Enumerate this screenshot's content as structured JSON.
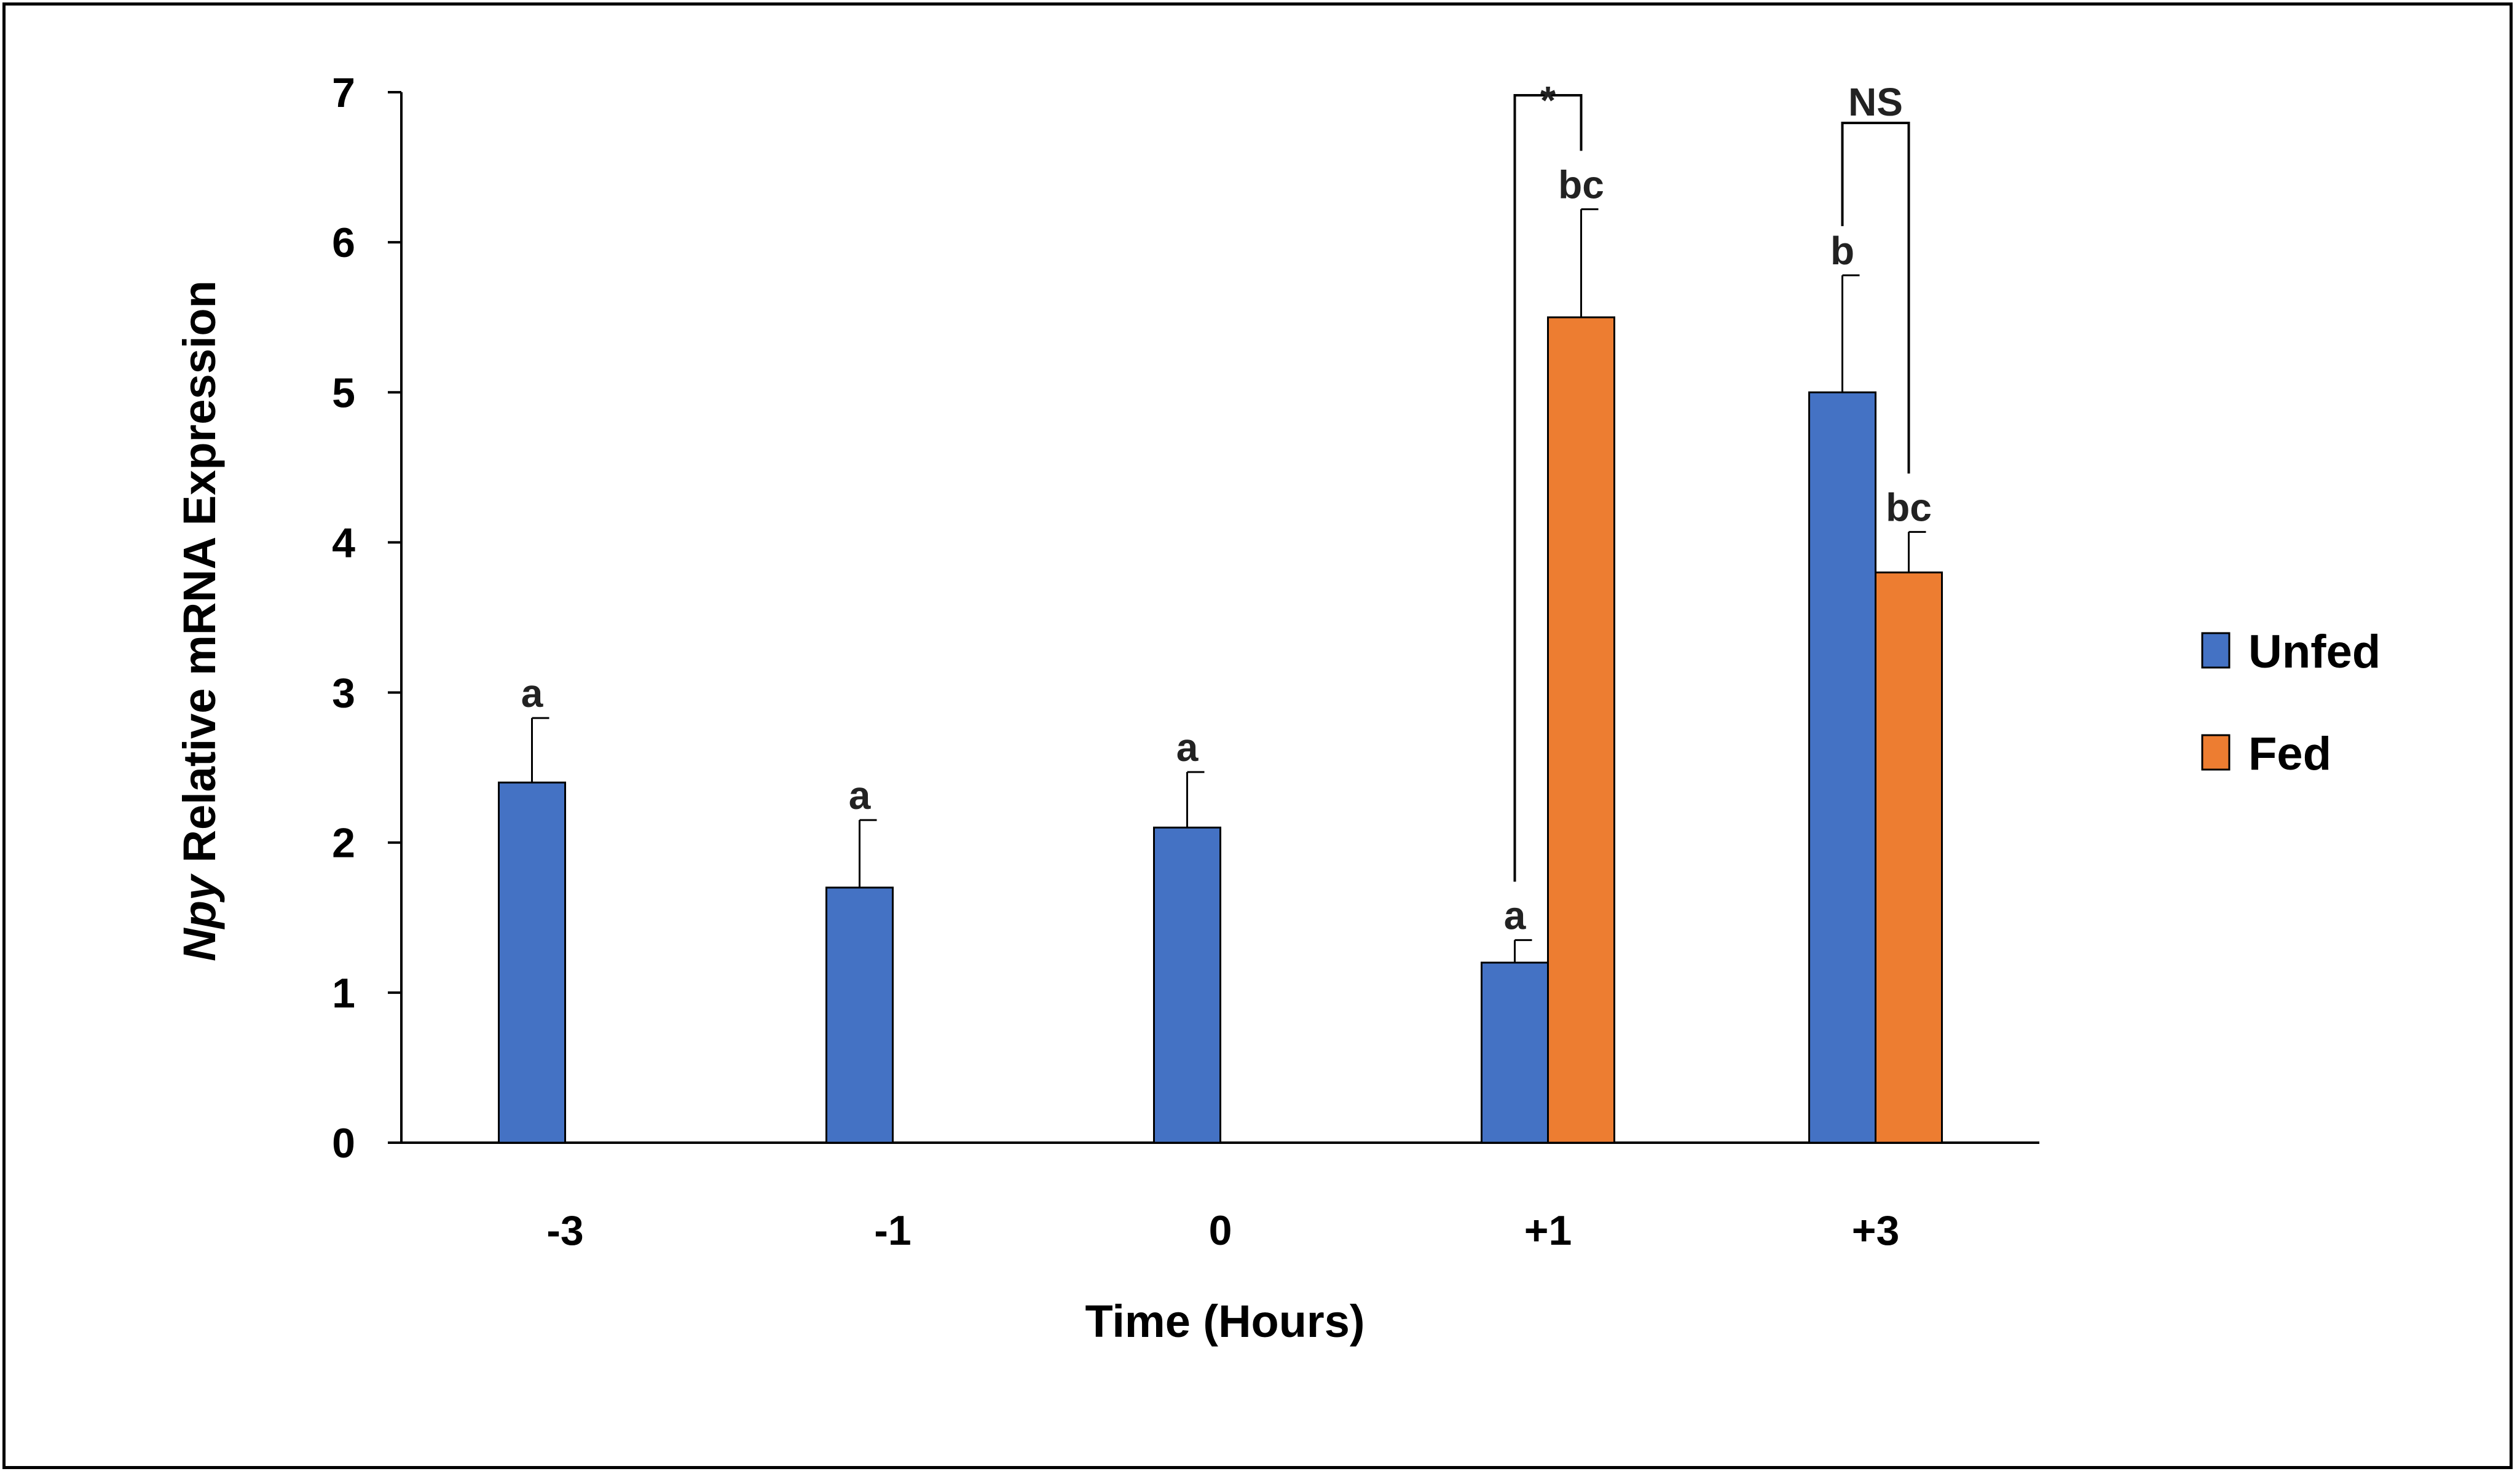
{
  "chart_data": {
    "type": "bar",
    "title": "",
    "ylabel_italic": "Npy",
    "ylabel_rest": " Relative mRNA Expression",
    "xlabel": "Time (Hours)",
    "ylim": [
      0,
      7
    ],
    "yticks": [
      "0",
      "1",
      "2",
      "3",
      "4",
      "5",
      "6",
      "7"
    ],
    "categories": [
      "-3",
      "-1",
      "0",
      "+1",
      "+3"
    ],
    "series": [
      {
        "name": "Unfed",
        "color": "#4472C4",
        "values": [
          2.4,
          1.7,
          2.1,
          1.2,
          5.0
        ],
        "errors": [
          0.43,
          0.45,
          0.37,
          0.15,
          0.78
        ],
        "labels": [
          "a",
          "a",
          "a",
          "a",
          "b"
        ]
      },
      {
        "name": "Fed",
        "color": "#ED7D31",
        "values": [
          null,
          null,
          null,
          5.5,
          3.8
        ],
        "errors": [
          null,
          null,
          null,
          0.72,
          0.27
        ],
        "labels": [
          "",
          "",
          "",
          "bc",
          "bc"
        ]
      }
    ],
    "comparisons": [
      {
        "category": "+1",
        "label": "*"
      },
      {
        "category": "+3",
        "label": "NS"
      }
    ],
    "legend_position": "right"
  }
}
